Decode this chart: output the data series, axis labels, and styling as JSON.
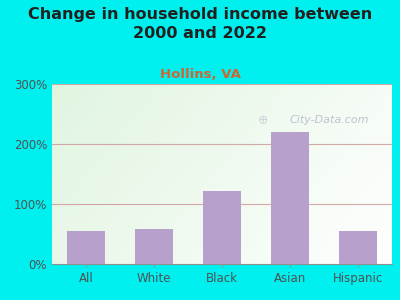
{
  "title": "Change in household income between\n2000 and 2022",
  "subtitle": "Hollins, VA",
  "categories": [
    "All",
    "White",
    "Black",
    "Asian",
    "Hispanic"
  ],
  "values": [
    55,
    58,
    122,
    220,
    55
  ],
  "bar_color": "#b8a0cc",
  "title_fontsize": 11.5,
  "subtitle_fontsize": 9.5,
  "subtitle_color": "#cc6633",
  "outer_bg_color": "#00f0f0",
  "ylim": [
    0,
    300
  ],
  "yticks": [
    0,
    100,
    200,
    300
  ],
  "ytick_labels": [
    "0%",
    "100%",
    "200%",
    "300%"
  ],
  "grid_color": "#d0a0a0",
  "watermark": "City-Data.com",
  "watermark_color": "#b8b8c8",
  "tick_color": "#505050",
  "title_color": "#202020"
}
